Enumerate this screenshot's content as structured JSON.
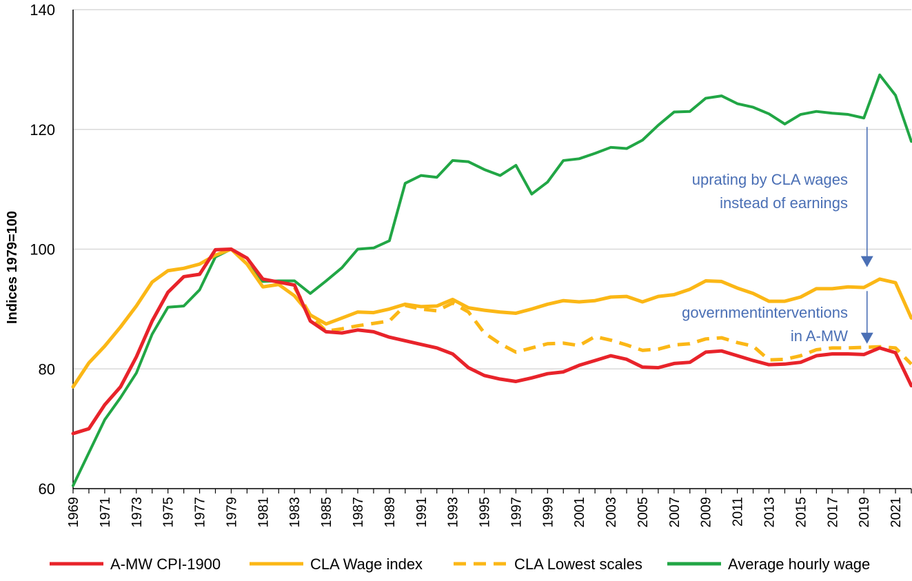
{
  "chart_data": {
    "type": "line",
    "title": "",
    "xlabel": "",
    "ylabel": "Indices 1979=100",
    "ylim": [
      60,
      140
    ],
    "y_ticks": [
      "60",
      "80",
      "100",
      "120",
      "140"
    ],
    "x": [
      1969,
      1970,
      1971,
      1972,
      1973,
      1974,
      1975,
      1976,
      1977,
      1978,
      1979,
      1980,
      1981,
      1982,
      1983,
      1984,
      1985,
      1986,
      1987,
      1988,
      1989,
      1990,
      1991,
      1992,
      1993,
      1994,
      1995,
      1996,
      1997,
      1998,
      1999,
      2000,
      2001,
      2002,
      2003,
      2004,
      2005,
      2006,
      2007,
      2008,
      2009,
      2010,
      2011,
      2012,
      2013,
      2014,
      2015,
      2016,
      2017,
      2018,
      2019,
      2020,
      2021,
      2022
    ],
    "x_tick_labels": [
      "1969",
      "1971",
      "1973",
      "1975",
      "1977",
      "1979",
      "1981",
      "1983",
      "1985",
      "1987",
      "1989",
      "1991",
      "1993",
      "1995",
      "1997",
      "1999",
      "2001",
      "2003",
      "2005",
      "2007",
      "2009",
      "2011",
      "2013",
      "2015",
      "2017",
      "2019",
      "2021"
    ],
    "grid": "horizontal",
    "legend_position": "bottom",
    "series": [
      {
        "name": "A-MW CPI-1900",
        "color": "#e8232a",
        "style": "solid",
        "values": [
          69.2,
          70.0,
          74.0,
          77.0,
          82.0,
          88.0,
          92.8,
          95.4,
          95.8,
          99.9,
          100.0,
          98.5,
          95.0,
          94.5,
          94.0,
          88.0,
          86.2,
          86.0,
          86.5,
          86.2,
          85.3,
          84.7,
          84.1,
          83.5,
          82.5,
          80.2,
          78.9,
          78.3,
          77.9,
          78.5,
          79.2,
          79.5,
          80.6,
          81.4,
          82.2,
          81.6,
          80.3,
          80.2,
          80.9,
          81.1,
          82.8,
          83.0,
          82.2,
          81.4,
          80.7,
          80.8,
          81.1,
          82.2,
          82.5,
          82.5,
          82.4,
          83.5,
          82.7,
          77.2
        ]
      },
      {
        "name": "CLA Wage index",
        "color": "#fbb716",
        "style": "solid",
        "values": [
          77.0,
          81.0,
          83.8,
          87.0,
          90.5,
          94.5,
          96.4,
          96.8,
          97.5,
          99.0,
          100.0,
          97.5,
          93.7,
          94.1,
          92.2,
          89.0,
          87.5,
          88.5,
          89.5,
          89.4,
          90.0,
          90.8,
          90.4,
          90.5,
          91.6,
          90.2,
          89.8,
          89.5,
          89.3,
          90.0,
          90.8,
          91.4,
          91.2,
          91.4,
          92.0,
          92.1,
          91.2,
          92.1,
          92.4,
          93.3,
          94.7,
          94.6,
          93.5,
          92.6,
          91.3,
          91.3,
          92.0,
          93.4,
          93.4,
          93.7,
          93.6,
          95.0,
          94.4,
          88.5
        ]
      },
      {
        "name": "CLA Lowest scales",
        "color": "#fbb716",
        "style": "dashed",
        "values": [
          null,
          null,
          null,
          null,
          null,
          null,
          null,
          null,
          null,
          null,
          null,
          null,
          null,
          null,
          93.6,
          89.0,
          86.3,
          86.7,
          87.2,
          87.6,
          88.0,
          90.6,
          90.0,
          89.7,
          91.0,
          89.5,
          86.0,
          84.2,
          82.8,
          83.5,
          84.2,
          84.3,
          83.9,
          85.4,
          84.8,
          84.0,
          83.1,
          83.3,
          84.0,
          84.2,
          85.0,
          85.2,
          84.4,
          83.8,
          81.5,
          81.6,
          82.2,
          83.2,
          83.5,
          83.5,
          83.6,
          83.7,
          83.5,
          80.8
        ]
      },
      {
        "name": "Average hourly wage",
        "color": "#21a645",
        "style": "solid",
        "values": [
          60.5,
          66.0,
          71.5,
          75.2,
          79.3,
          85.8,
          90.3,
          90.5,
          93.2,
          98.7,
          100.0,
          97.5,
          94.6,
          94.7,
          94.7,
          92.6,
          94.7,
          96.9,
          100.0,
          100.2,
          101.4,
          111.0,
          112.3,
          112.0,
          114.8,
          114.6,
          113.3,
          112.3,
          114.0,
          109.2,
          111.2,
          114.8,
          115.1,
          116.0,
          117.0,
          116.8,
          118.2,
          120.7,
          122.9,
          123.0,
          125.2,
          125.6,
          124.3,
          123.7,
          122.6,
          120.9,
          122.5,
          123.0,
          122.7,
          122.5,
          121.9,
          129.1,
          125.7,
          118.0
        ]
      }
    ],
    "annotations": [
      {
        "lines": [
          "uprating by CLA wages",
          "instead of earnings"
        ],
        "arrow": {
          "x": 2019.2,
          "from": 120.4,
          "to": 97.0
        }
      },
      {
        "lines": [
          "governmentinterventions",
          "in A-MW"
        ],
        "arrow": {
          "x": 2019.2,
          "from": 93.0,
          "to": 84.2
        }
      }
    ]
  }
}
